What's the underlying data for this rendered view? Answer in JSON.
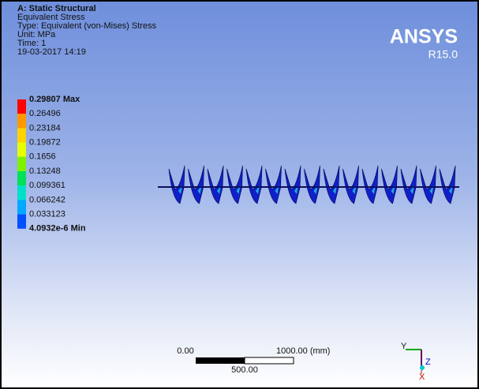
{
  "header": {
    "lines": [
      "A: Static Structural",
      "Equivalent Stress",
      "Type: Equivalent (von-Mises) Stress",
      "Unit: MPa",
      "Time: 1",
      "19-03-2017 14:19"
    ]
  },
  "logo": {
    "name": "ANSYS",
    "version": "R15.0"
  },
  "legend": {
    "entries": [
      {
        "label": "0.29807 Max",
        "color": "#ff0000"
      },
      {
        "label": "0.26496",
        "color": "#ff9900"
      },
      {
        "label": "0.23184",
        "color": "#ffd200"
      },
      {
        "label": "0.19872",
        "color": "#e6ff00"
      },
      {
        "label": "0.1656",
        "color": "#7ff000"
      },
      {
        "label": "0.13248",
        "color": "#00e05a"
      },
      {
        "label": "0.099361",
        "color": "#00e0c8"
      },
      {
        "label": "0.066242",
        "color": "#00a8ff"
      },
      {
        "label": "0.033123",
        "color": "#0050ff"
      },
      {
        "label": "4.0932e-6 Min",
        "color": "#0000ff"
      }
    ]
  },
  "scale_bar": {
    "left": "0.00",
    "right": "1000.00 (mm)",
    "middle": "500.00"
  },
  "triad": {
    "y": "Y",
    "z": "Z",
    "x": "X"
  }
}
